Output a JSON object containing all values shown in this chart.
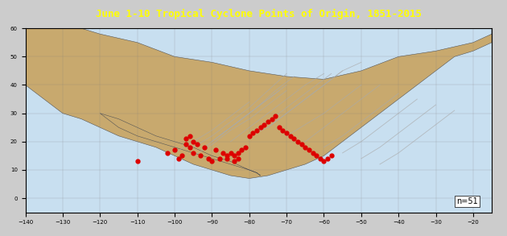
{
  "title": "June 1-10 Tropical Cyclone Points of Origin, 1851-2015",
  "xlim": [
    -140,
    -15
  ],
  "ylim": [
    -5,
    60
  ],
  "xticks": [
    -140,
    -130,
    -120,
    -110,
    -100,
    -90,
    -80,
    -70,
    -60,
    -50,
    -40,
    -30,
    -20
  ],
  "yticks": [
    0,
    10,
    20,
    30,
    40,
    50,
    60
  ],
  "ocean_color": "#c8dff0",
  "land_color": "#c8a96e",
  "header_color": "#888888",
  "title_color": "#ffff00",
  "track_color": "#aaaaaa",
  "point_color": "#dd0000",
  "n_label": "n=51",
  "genesis_points": [
    [
      -96,
      18
    ],
    [
      -97,
      19
    ],
    [
      -98,
      15
    ],
    [
      -99,
      14
    ],
    [
      -102,
      16
    ],
    [
      -100,
      17
    ],
    [
      -95,
      16
    ],
    [
      -93,
      15
    ],
    [
      -91,
      14
    ],
    [
      -90,
      13
    ],
    [
      -88,
      14
    ],
    [
      -86,
      15
    ],
    [
      -85,
      16
    ],
    [
      -84,
      15
    ],
    [
      -83,
      16
    ],
    [
      -82,
      17
    ],
    [
      -81,
      18
    ],
    [
      -80,
      22
    ],
    [
      -79,
      23
    ],
    [
      -78,
      24
    ],
    [
      -77,
      25
    ],
    [
      -76,
      26
    ],
    [
      -75,
      27
    ],
    [
      -74,
      28
    ],
    [
      -73,
      29
    ],
    [
      -72,
      25
    ],
    [
      -71,
      24
    ],
    [
      -70,
      23
    ],
    [
      -69,
      22
    ],
    [
      -68,
      21
    ],
    [
      -67,
      20
    ],
    [
      -66,
      19
    ],
    [
      -65,
      18
    ],
    [
      -64,
      17
    ],
    [
      -63,
      16
    ],
    [
      -62,
      15
    ],
    [
      -61,
      14
    ],
    [
      -60,
      13
    ],
    [
      -59,
      14
    ],
    [
      -58,
      15
    ],
    [
      -95,
      20
    ],
    [
      -96,
      22
    ],
    [
      -97,
      21
    ],
    [
      -94,
      19
    ],
    [
      -92,
      18
    ],
    [
      -89,
      17
    ],
    [
      -87,
      16
    ],
    [
      -86,
      14
    ],
    [
      -84,
      13
    ],
    [
      -83,
      14
    ],
    [
      -110,
      13
    ]
  ],
  "tracks": [
    [
      [
        -80,
        22
      ],
      [
        -75,
        25
      ],
      [
        -70,
        30
      ],
      [
        -65,
        35
      ],
      [
        -60,
        40
      ],
      [
        -55,
        45
      ]
    ],
    [
      [
        -90,
        20
      ],
      [
        -85,
        25
      ],
      [
        -80,
        30
      ],
      [
        -75,
        35
      ],
      [
        -70,
        40
      ]
    ],
    [
      [
        -95,
        18
      ],
      [
        -90,
        22
      ],
      [
        -85,
        27
      ],
      [
        -80,
        32
      ],
      [
        -75,
        38
      ],
      [
        -70,
        44
      ]
    ],
    [
      [
        -85,
        20
      ],
      [
        -80,
        25
      ],
      [
        -75,
        30
      ],
      [
        -70,
        35
      ],
      [
        -65,
        40
      ],
      [
        -60,
        44
      ]
    ],
    [
      [
        -70,
        22
      ],
      [
        -65,
        26
      ],
      [
        -60,
        30
      ],
      [
        -55,
        35
      ],
      [
        -50,
        40
      ]
    ],
    [
      [
        -75,
        25
      ],
      [
        -70,
        30
      ],
      [
        -65,
        35
      ],
      [
        -60,
        40
      ],
      [
        -55,
        45
      ],
      [
        -50,
        48
      ]
    ],
    [
      [
        -88,
        22
      ],
      [
        -83,
        27
      ],
      [
        -78,
        32
      ],
      [
        -73,
        38
      ],
      [
        -68,
        43
      ]
    ],
    [
      [
        -92,
        18
      ],
      [
        -87,
        23
      ],
      [
        -82,
        28
      ],
      [
        -77,
        33
      ],
      [
        -72,
        38
      ]
    ],
    [
      [
        -78,
        24
      ],
      [
        -73,
        29
      ],
      [
        -68,
        34
      ],
      [
        -63,
        39
      ],
      [
        -58,
        44
      ]
    ],
    [
      [
        -65,
        20
      ],
      [
        -60,
        25
      ],
      [
        -55,
        30
      ],
      [
        -50,
        35
      ],
      [
        -45,
        40
      ]
    ],
    [
      [
        -60,
        18
      ],
      [
        -55,
        22
      ],
      [
        -50,
        27
      ],
      [
        -45,
        32
      ],
      [
        -40,
        37
      ]
    ],
    [
      [
        -55,
        16
      ],
      [
        -50,
        20
      ],
      [
        -45,
        25
      ],
      [
        -40,
        30
      ],
      [
        -35,
        35
      ]
    ],
    [
      [
        -50,
        14
      ],
      [
        -45,
        18
      ],
      [
        -40,
        23
      ],
      [
        -35,
        28
      ],
      [
        -30,
        33
      ]
    ],
    [
      [
        -45,
        12
      ],
      [
        -40,
        16
      ],
      [
        -35,
        21
      ],
      [
        -30,
        26
      ],
      [
        -25,
        31
      ]
    ],
    [
      [
        -95,
        15
      ],
      [
        -90,
        19
      ],
      [
        -85,
        24
      ],
      [
        -80,
        28
      ],
      [
        -75,
        33
      ],
      [
        -70,
        38
      ]
    ],
    [
      [
        -100,
        16
      ],
      [
        -95,
        20
      ],
      [
        -90,
        24
      ],
      [
        -85,
        29
      ],
      [
        -80,
        34
      ]
    ]
  ]
}
